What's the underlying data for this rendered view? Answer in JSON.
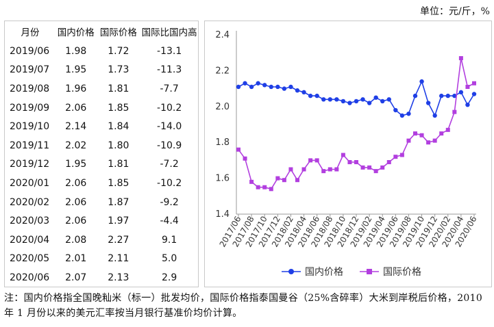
{
  "unit": "单位：元/斤，%",
  "table": {
    "headers": [
      "月份",
      "国内价格",
      "国际价格",
      "国际比国内高"
    ],
    "rows": [
      [
        "2019/06",
        "1.98",
        "1.72",
        "-13.1"
      ],
      [
        "2019/07",
        "1.95",
        "1.73",
        "-11.3"
      ],
      [
        "2019/08",
        "1.96",
        "1.81",
        "-7.7"
      ],
      [
        "2019/09",
        "2.06",
        "1.85",
        "-10.2"
      ],
      [
        "2019/10",
        "2.14",
        "1.84",
        "-14.0"
      ],
      [
        "2019/11",
        "2.02",
        "1.80",
        "-10.9"
      ],
      [
        "2019/12",
        "1.95",
        "1.81",
        "-7.2"
      ],
      [
        "2020/01",
        "2.06",
        "1.85",
        "-10.2"
      ],
      [
        "2020/02",
        "2.06",
        "1.87",
        "-9.2"
      ],
      [
        "2020/03",
        "2.06",
        "1.97",
        "-4.4"
      ],
      [
        "2020/04",
        "2.08",
        "2.27",
        "9.1"
      ],
      [
        "2020/05",
        "2.01",
        "2.11",
        "5.0"
      ],
      [
        "2020/06",
        "2.07",
        "2.13",
        "2.9"
      ]
    ]
  },
  "chart_data": {
    "type": "line",
    "x": [
      "2017/06",
      "2017/07",
      "2017/08",
      "2017/09",
      "2017/10",
      "2017/11",
      "2017/12",
      "2018/01",
      "2018/02",
      "2018/03",
      "2018/04",
      "2018/05",
      "2018/06",
      "2018/07",
      "2018/08",
      "2018/09",
      "2018/10",
      "2018/11",
      "2018/12",
      "2019/01",
      "2019/02",
      "2019/03",
      "2019/04",
      "2019/05",
      "2019/06",
      "2019/07",
      "2019/08",
      "2019/09",
      "2019/10",
      "2019/11",
      "2019/12",
      "2020/01",
      "2020/02",
      "2020/03",
      "2020/04",
      "2020/05",
      "2020/06"
    ],
    "xtick_labels": [
      "2017/06",
      "2017/08",
      "2017/10",
      "2017/12",
      "2018/02",
      "2018/04",
      "2018/06",
      "2018/08",
      "2018/10",
      "2018/12",
      "2019/02",
      "2019/04",
      "2019/06",
      "2019/08",
      "2019/10",
      "2019/12",
      "2020/02",
      "2020/04",
      "2020/06"
    ],
    "series": [
      {
        "name": "国内价格",
        "color": "#1f3fe6",
        "marker": "circle",
        "values": [
          2.11,
          2.13,
          2.11,
          2.13,
          2.12,
          2.11,
          2.11,
          2.1,
          2.11,
          2.09,
          2.08,
          2.06,
          2.06,
          2.04,
          2.04,
          2.04,
          2.03,
          2.02,
          2.03,
          2.04,
          2.02,
          2.05,
          2.03,
          2.04,
          1.98,
          1.95,
          1.96,
          2.06,
          2.14,
          2.02,
          1.95,
          2.06,
          2.06,
          2.06,
          2.08,
          2.01,
          2.07
        ]
      },
      {
        "name": "国际价格",
        "color": "#b23fdf",
        "marker": "square",
        "values": [
          1.76,
          1.71,
          1.58,
          1.55,
          1.55,
          1.54,
          1.6,
          1.59,
          1.65,
          1.59,
          1.65,
          1.7,
          1.7,
          1.64,
          1.65,
          1.65,
          1.73,
          1.69,
          1.69,
          1.66,
          1.66,
          1.64,
          1.66,
          1.69,
          1.72,
          1.73,
          1.81,
          1.85,
          1.84,
          1.8,
          1.81,
          1.85,
          1.87,
          1.97,
          2.27,
          2.11,
          2.13
        ]
      }
    ],
    "ylim": [
      1.4,
      2.4
    ],
    "yticks": [
      "1.4",
      "1.6",
      "1.8",
      "2.0",
      "2.2",
      "2.4"
    ],
    "grid": false,
    "legend": "bottom"
  },
  "note": "注：国内价格指全国晚籼米（标一）批发均价，国际价格指泰国曼谷（25%含碎率）大米到岸税后价格，2010 年 1 月份以来的美元汇率按当月银行基准价均价计算。"
}
